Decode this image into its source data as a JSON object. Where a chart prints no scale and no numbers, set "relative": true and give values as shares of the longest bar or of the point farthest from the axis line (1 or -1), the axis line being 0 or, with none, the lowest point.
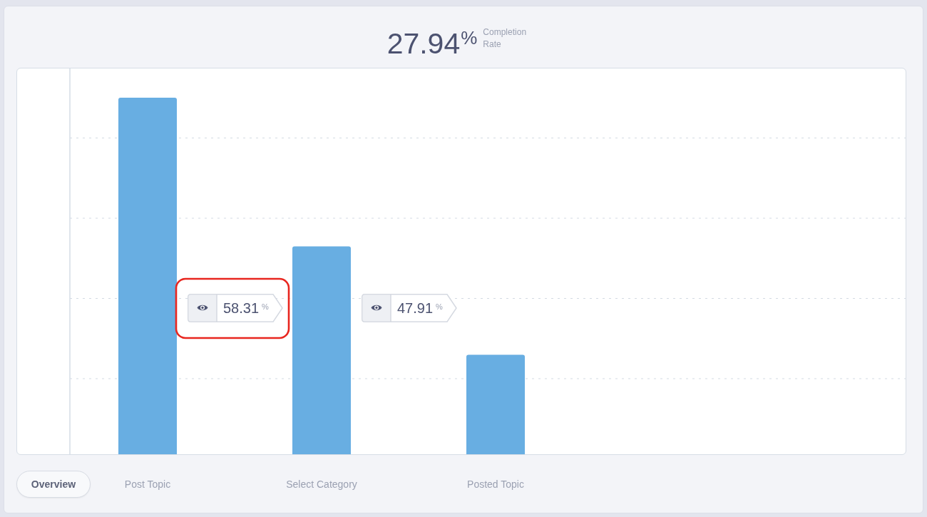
{
  "chart_data": {
    "type": "bar",
    "title": "27.94$^{%}$",
    "subtitle": "Completion Rate",
    "categories": [
      "Post Topic",
      "Select Category",
      "Posted Topic"
    ],
    "values": [
      1,
      0.583,
      0.279
    ],
    "color": "#68aee2",
    "relative": true,
    "grid": "y",
    "annotations": [
      "58.31$^{%}$",
      "47.91$^{%}$",
      "Overview"
    ]
  }
}
